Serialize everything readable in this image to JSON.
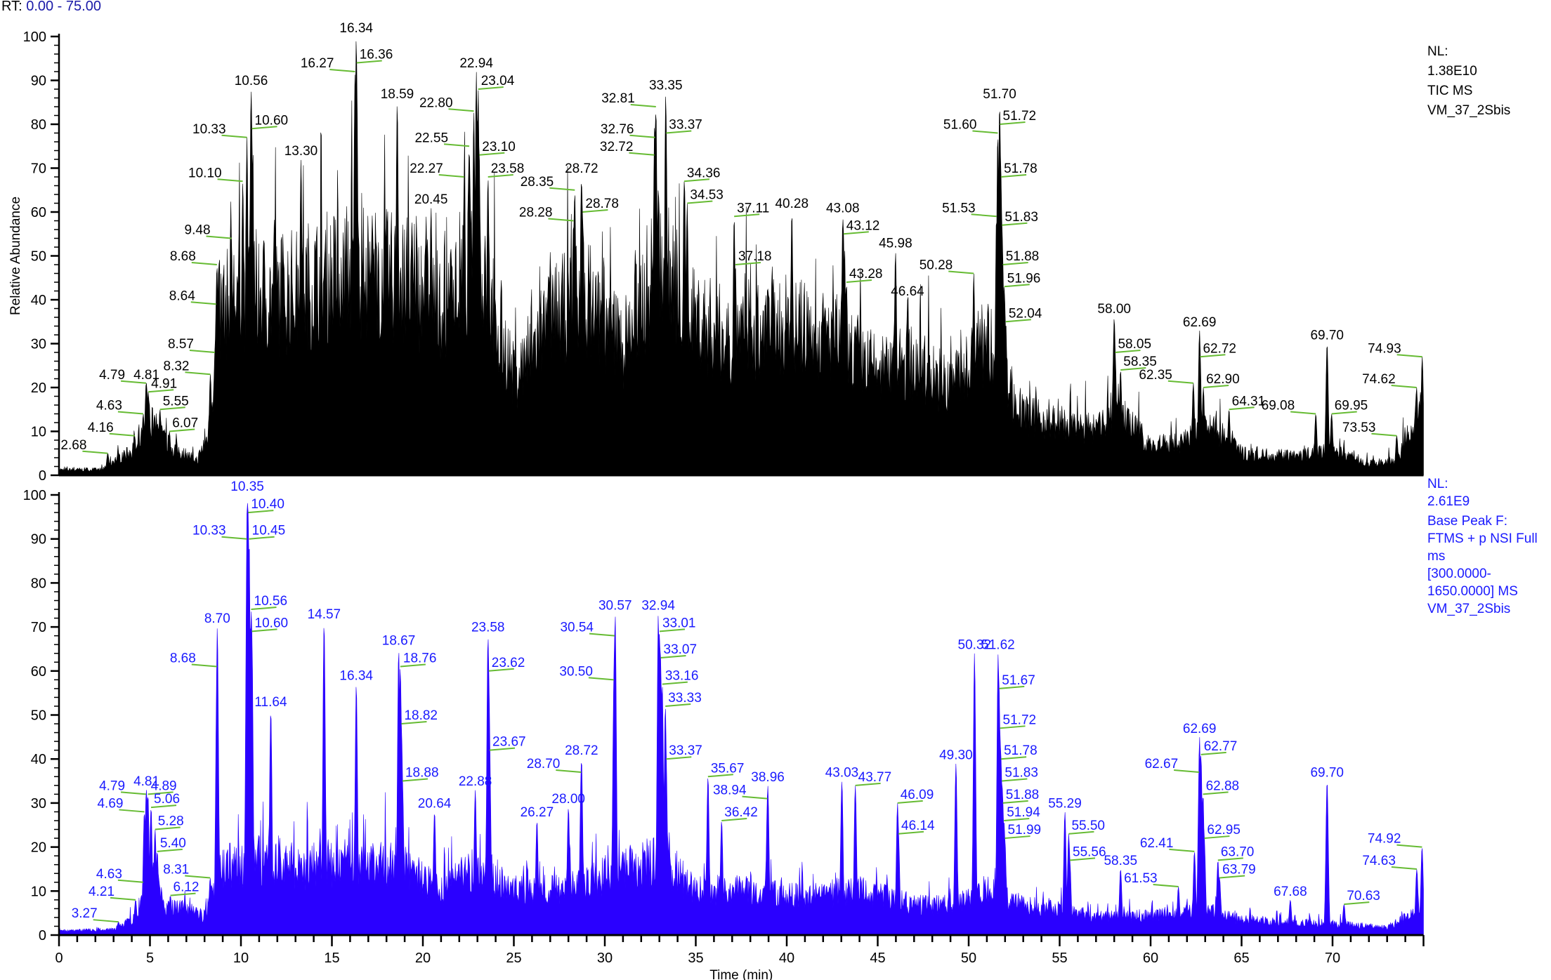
{
  "header": {
    "rt_label": "RT:",
    "rt_range": "0.00 - 75.00"
  },
  "top_panel_info": [
    "NL:",
    "1.38E10",
    "TIC  MS",
    "VM_37_2Sbis"
  ],
  "bottom_panel_info": [
    "NL:",
    "2.61E9",
    "Base Peak F:",
    "FTMS + p NSI Full",
    "ms",
    "[300.0000-",
    "1650.0000]  MS",
    "VM_37_2Sbis"
  ],
  "colors": {
    "top_trace": "#000000",
    "bottom_trace": "#2a00ff",
    "leader": "#66bb33",
    "bottom_text": "#1a1aff"
  },
  "chart_data": [
    {
      "type": "area",
      "title": "TIC  MS",
      "xlabel": "Time (min)",
      "ylabel": "Relative Abundance",
      "xlim": [
        0,
        75
      ],
      "ylim": [
        0,
        100
      ],
      "yticks": [
        0,
        10,
        20,
        30,
        40,
        50,
        60,
        70,
        80,
        90,
        100
      ],
      "peak_labels": [
        {
          "rt": "2.68",
          "y": 5,
          "pos": "left"
        },
        {
          "rt": "4.16",
          "y": 9,
          "pos": "left"
        },
        {
          "rt": "4.63",
          "y": 14,
          "pos": "left"
        },
        {
          "rt": "4.79",
          "y": 21,
          "pos": "left"
        },
        {
          "rt": "4.81",
          "y": 21,
          "pos": "top"
        },
        {
          "rt": "4.91",
          "y": 19,
          "pos": "right"
        },
        {
          "rt": "5.55",
          "y": 15,
          "pos": "right"
        },
        {
          "rt": "6.07",
          "y": 10,
          "pos": "right"
        },
        {
          "rt": "8.32",
          "y": 23,
          "pos": "left"
        },
        {
          "rt": "8.57",
          "y": 28,
          "pos": "left"
        },
        {
          "rt": "8.64",
          "y": 39,
          "pos": "left"
        },
        {
          "rt": "8.68",
          "y": 48,
          "pos": "left"
        },
        {
          "rt": "9.48",
          "y": 54,
          "pos": "left"
        },
        {
          "rt": "10.10",
          "y": 67,
          "pos": "left"
        },
        {
          "rt": "10.33",
          "y": 77,
          "pos": "left"
        },
        {
          "rt": "10.56",
          "y": 88,
          "pos": "top"
        },
        {
          "rt": "10.60",
          "y": 79,
          "pos": "right"
        },
        {
          "rt": "13.30",
          "y": 72,
          "pos": "top"
        },
        {
          "rt": "16.27",
          "y": 92,
          "pos": "left"
        },
        {
          "rt": "16.34",
          "y": 100,
          "pos": "top"
        },
        {
          "rt": "16.36",
          "y": 94,
          "pos": "right"
        },
        {
          "rt": "18.59",
          "y": 85,
          "pos": "top"
        },
        {
          "rt": "20.45",
          "y": 61,
          "pos": "top"
        },
        {
          "rt": "22.27",
          "y": 68,
          "pos": "left"
        },
        {
          "rt": "22.55",
          "y": 75,
          "pos": "left"
        },
        {
          "rt": "22.80",
          "y": 83,
          "pos": "left"
        },
        {
          "rt": "22.94",
          "y": 92,
          "pos": "top"
        },
        {
          "rt": "23.04",
          "y": 88,
          "pos": "right"
        },
        {
          "rt": "23.10",
          "y": 73,
          "pos": "right"
        },
        {
          "rt": "23.58",
          "y": 68,
          "pos": "right"
        },
        {
          "rt": "28.28",
          "y": 58,
          "pos": "left"
        },
        {
          "rt": "28.35",
          "y": 65,
          "pos": "left"
        },
        {
          "rt": "28.72",
          "y": 68,
          "pos": "top"
        },
        {
          "rt": "28.78",
          "y": 60,
          "pos": "right"
        },
        {
          "rt": "32.72",
          "y": 73,
          "pos": "left"
        },
        {
          "rt": "32.76",
          "y": 77,
          "pos": "left"
        },
        {
          "rt": "32.81",
          "y": 84,
          "pos": "left"
        },
        {
          "rt": "33.35",
          "y": 87,
          "pos": "top"
        },
        {
          "rt": "33.37",
          "y": 78,
          "pos": "right"
        },
        {
          "rt": "34.36",
          "y": 67,
          "pos": "right"
        },
        {
          "rt": "34.53",
          "y": 62,
          "pos": "right"
        },
        {
          "rt": "37.11",
          "y": 59,
          "pos": "right"
        },
        {
          "rt": "37.18",
          "y": 48,
          "pos": "right"
        },
        {
          "rt": "40.28",
          "y": 60,
          "pos": "top"
        },
        {
          "rt": "43.08",
          "y": 59,
          "pos": "top"
        },
        {
          "rt": "43.12",
          "y": 55,
          "pos": "right"
        },
        {
          "rt": "43.28",
          "y": 44,
          "pos": "right"
        },
        {
          "rt": "45.98",
          "y": 51,
          "pos": "top"
        },
        {
          "rt": "46.64",
          "y": 40,
          "pos": "top"
        },
        {
          "rt": "50.28",
          "y": 46,
          "pos": "left"
        },
        {
          "rt": "51.53",
          "y": 59,
          "pos": "left"
        },
        {
          "rt": "51.60",
          "y": 78,
          "pos": "left"
        },
        {
          "rt": "51.70",
          "y": 85,
          "pos": "top"
        },
        {
          "rt": "51.72",
          "y": 80,
          "pos": "right"
        },
        {
          "rt": "51.78",
          "y": 68,
          "pos": "right"
        },
        {
          "rt": "51.83",
          "y": 57,
          "pos": "right"
        },
        {
          "rt": "51.88",
          "y": 48,
          "pos": "right"
        },
        {
          "rt": "51.96",
          "y": 43,
          "pos": "right"
        },
        {
          "rt": "52.04",
          "y": 35,
          "pos": "right"
        },
        {
          "rt": "58.00",
          "y": 36,
          "pos": "top"
        },
        {
          "rt": "58.05",
          "y": 28,
          "pos": "right"
        },
        {
          "rt": "58.35",
          "y": 24,
          "pos": "right"
        },
        {
          "rt": "62.35",
          "y": 21,
          "pos": "left"
        },
        {
          "rt": "62.69",
          "y": 33,
          "pos": "top"
        },
        {
          "rt": "62.72",
          "y": 27,
          "pos": "right"
        },
        {
          "rt": "62.90",
          "y": 20,
          "pos": "right"
        },
        {
          "rt": "64.31",
          "y": 15,
          "pos": "right"
        },
        {
          "rt": "69.08",
          "y": 14,
          "pos": "left"
        },
        {
          "rt": "69.70",
          "y": 30,
          "pos": "top"
        },
        {
          "rt": "69.95",
          "y": 14,
          "pos": "right"
        },
        {
          "rt": "73.53",
          "y": 9,
          "pos": "left"
        },
        {
          "rt": "74.62",
          "y": 20,
          "pos": "left"
        },
        {
          "rt": "74.93",
          "y": 27,
          "pos": "left"
        }
      ]
    },
    {
      "type": "area",
      "title": "Base Peak F: FTMS + p NSI Full ms [300.0000-1650.0000]  MS",
      "xlabel": "Time (min)",
      "xlim": [
        0,
        75
      ],
      "ylim": [
        0,
        100
      ],
      "xticks": [
        0,
        5,
        10,
        15,
        20,
        25,
        30,
        35,
        40,
        45,
        50,
        55,
        60,
        65,
        70
      ],
      "yticks": [
        0,
        10,
        20,
        30,
        40,
        50,
        60,
        70,
        80,
        90,
        100
      ],
      "peak_labels": [
        {
          "rt": "3.27",
          "y": 3,
          "pos": "left"
        },
        {
          "rt": "4.21",
          "y": 8,
          "pos": "left"
        },
        {
          "rt": "4.63",
          "y": 12,
          "pos": "left"
        },
        {
          "rt": "4.69",
          "y": 28,
          "pos": "left"
        },
        {
          "rt": "4.79",
          "y": 32,
          "pos": "left"
        },
        {
          "rt": "4.81",
          "y": 33,
          "pos": "top"
        },
        {
          "rt": "4.89",
          "y": 32,
          "pos": "right"
        },
        {
          "rt": "5.06",
          "y": 29,
          "pos": "right"
        },
        {
          "rt": "5.28",
          "y": 24,
          "pos": "right"
        },
        {
          "rt": "5.40",
          "y": 19,
          "pos": "right"
        },
        {
          "rt": "6.12",
          "y": 9,
          "pos": "right"
        },
        {
          "rt": "8.31",
          "y": 13,
          "pos": "left"
        },
        {
          "rt": "8.68",
          "y": 61,
          "pos": "left"
        },
        {
          "rt": "8.70",
          "y": 70,
          "pos": "top"
        },
        {
          "rt": "10.33",
          "y": 90,
          "pos": "left"
        },
        {
          "rt": "10.35",
          "y": 100,
          "pos": "top"
        },
        {
          "rt": "10.40",
          "y": 96,
          "pos": "right"
        },
        {
          "rt": "10.45",
          "y": 90,
          "pos": "right"
        },
        {
          "rt": "10.56",
          "y": 74,
          "pos": "right"
        },
        {
          "rt": "10.60",
          "y": 69,
          "pos": "right"
        },
        {
          "rt": "11.64",
          "y": 51,
          "pos": "top"
        },
        {
          "rt": "14.57",
          "y": 71,
          "pos": "top"
        },
        {
          "rt": "16.34",
          "y": 57,
          "pos": "top"
        },
        {
          "rt": "18.67",
          "y": 65,
          "pos": "top"
        },
        {
          "rt": "18.76",
          "y": 61,
          "pos": "right"
        },
        {
          "rt": "18.82",
          "y": 48,
          "pos": "right"
        },
        {
          "rt": "18.88",
          "y": 35,
          "pos": "right"
        },
        {
          "rt": "20.64",
          "y": 28,
          "pos": "top"
        },
        {
          "rt": "22.88",
          "y": 33,
          "pos": "top"
        },
        {
          "rt": "23.58",
          "y": 68,
          "pos": "top"
        },
        {
          "rt": "23.62",
          "y": 60,
          "pos": "right"
        },
        {
          "rt": "23.67",
          "y": 42,
          "pos": "right"
        },
        {
          "rt": "26.27",
          "y": 26,
          "pos": "top"
        },
        {
          "rt": "28.00",
          "y": 29,
          "pos": "top"
        },
        {
          "rt": "28.70",
          "y": 37,
          "pos": "left"
        },
        {
          "rt": "28.72",
          "y": 40,
          "pos": "top"
        },
        {
          "rt": "30.50",
          "y": 58,
          "pos": "left"
        },
        {
          "rt": "30.54",
          "y": 68,
          "pos": "left"
        },
        {
          "rt": "30.57",
          "y": 73,
          "pos": "top"
        },
        {
          "rt": "32.94",
          "y": 73,
          "pos": "top"
        },
        {
          "rt": "33.01",
          "y": 69,
          "pos": "right"
        },
        {
          "rt": "33.07",
          "y": 63,
          "pos": "right"
        },
        {
          "rt": "33.16",
          "y": 57,
          "pos": "right"
        },
        {
          "rt": "33.33",
          "y": 52,
          "pos": "right"
        },
        {
          "rt": "33.37",
          "y": 40,
          "pos": "right"
        },
        {
          "rt": "35.67",
          "y": 36,
          "pos": "right"
        },
        {
          "rt": "36.42",
          "y": 26,
          "pos": "right"
        },
        {
          "rt": "38.94",
          "y": 31,
          "pos": "left"
        },
        {
          "rt": "38.96",
          "y": 34,
          "pos": "top"
        },
        {
          "rt": "43.03",
          "y": 35,
          "pos": "top"
        },
        {
          "rt": "43.77",
          "y": 34,
          "pos": "right"
        },
        {
          "rt": "46.09",
          "y": 30,
          "pos": "right"
        },
        {
          "rt": "46.14",
          "y": 23,
          "pos": "right"
        },
        {
          "rt": "49.30",
          "y": 39,
          "pos": "top"
        },
        {
          "rt": "50.32",
          "y": 64,
          "pos": "top"
        },
        {
          "rt": "51.62",
          "y": 64,
          "pos": "top"
        },
        {
          "rt": "51.67",
          "y": 56,
          "pos": "right"
        },
        {
          "rt": "51.72",
          "y": 47,
          "pos": "right"
        },
        {
          "rt": "51.78",
          "y": 40,
          "pos": "right"
        },
        {
          "rt": "51.83",
          "y": 35,
          "pos": "right"
        },
        {
          "rt": "51.88",
          "y": 30,
          "pos": "right"
        },
        {
          "rt": "51.94",
          "y": 26,
          "pos": "right"
        },
        {
          "rt": "51.99",
          "y": 22,
          "pos": "right"
        },
        {
          "rt": "55.29",
          "y": 28,
          "pos": "top"
        },
        {
          "rt": "55.50",
          "y": 23,
          "pos": "right"
        },
        {
          "rt": "55.56",
          "y": 17,
          "pos": "right"
        },
        {
          "rt": "58.35",
          "y": 15,
          "pos": "top"
        },
        {
          "rt": "61.53",
          "y": 11,
          "pos": "left"
        },
        {
          "rt": "62.41",
          "y": 19,
          "pos": "left"
        },
        {
          "rt": "62.67",
          "y": 37,
          "pos": "left"
        },
        {
          "rt": "62.69",
          "y": 45,
          "pos": "top"
        },
        {
          "rt": "62.77",
          "y": 41,
          "pos": "right"
        },
        {
          "rt": "62.88",
          "y": 32,
          "pos": "right"
        },
        {
          "rt": "62.95",
          "y": 22,
          "pos": "right"
        },
        {
          "rt": "63.70",
          "y": 17,
          "pos": "right"
        },
        {
          "rt": "63.79",
          "y": 13,
          "pos": "right"
        },
        {
          "rt": "67.68",
          "y": 8,
          "pos": "top"
        },
        {
          "rt": "69.70",
          "y": 35,
          "pos": "top"
        },
        {
          "rt": "70.63",
          "y": 7,
          "pos": "right"
        },
        {
          "rt": "74.63",
          "y": 15,
          "pos": "left"
        },
        {
          "rt": "74.92",
          "y": 20,
          "pos": "left"
        }
      ]
    }
  ]
}
